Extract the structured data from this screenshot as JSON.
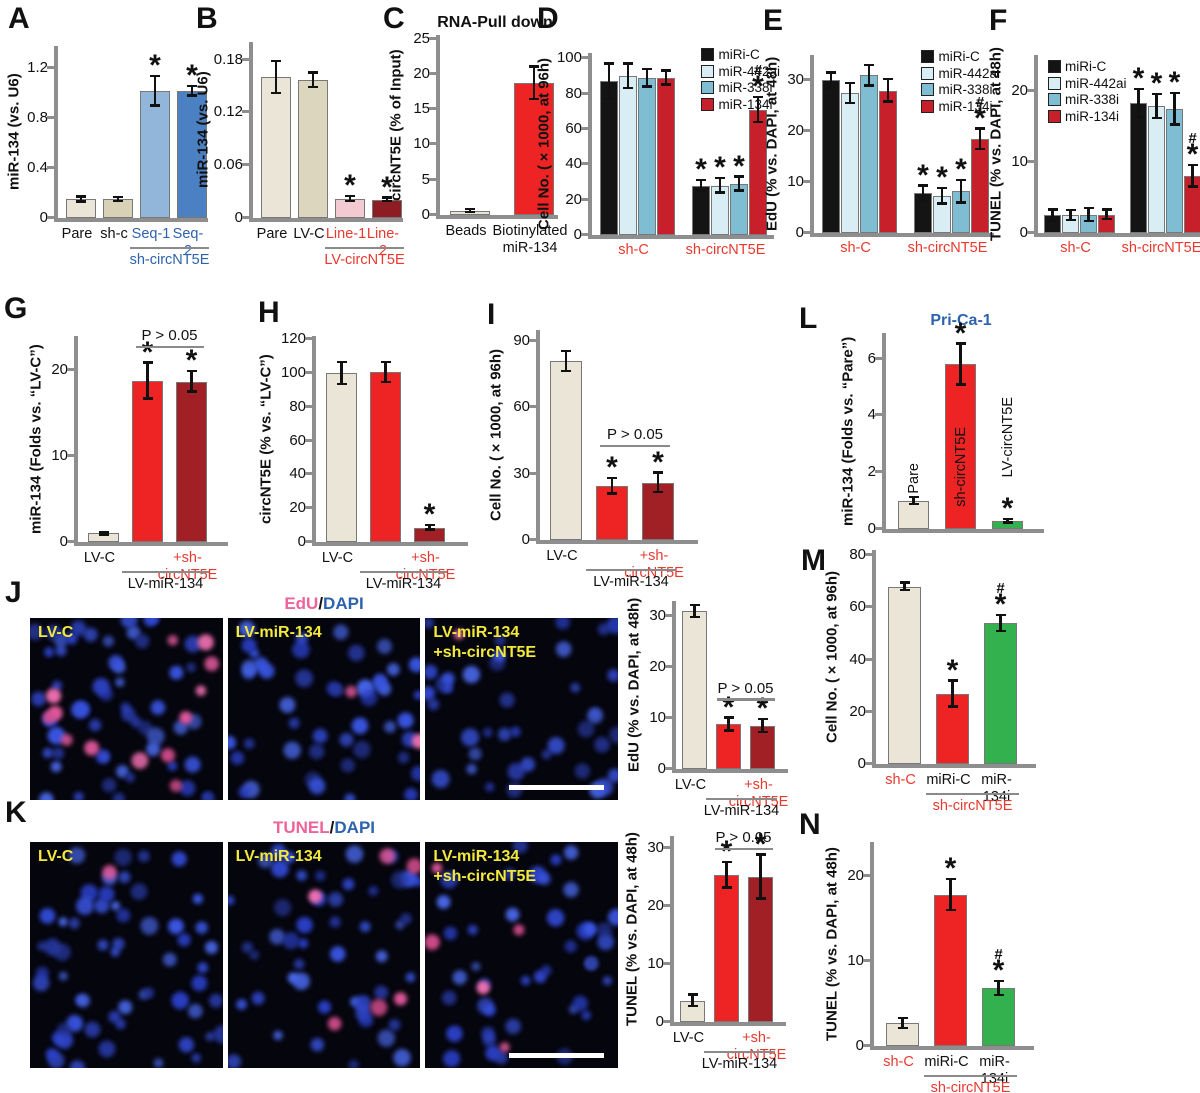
{
  "palette": {
    "beige": "#eae5d6",
    "beige2": "#ddd6bf",
    "tan": "#d8d1b5",
    "lightblue": "#92b5da",
    "blue": "#4b80c3",
    "pink": "#f3cad2",
    "maroon": "#8e1d23",
    "red": "#ee2424",
    "darkred": "#a02025",
    "black": "#141414",
    "vlightblue": "#d9edf5",
    "teal": "#7fbed2",
    "crimson": "#c8202a",
    "green": "#33b14e",
    "axis": "#8e8e8e",
    "red_text": "#e8392f",
    "blue_text": "#2d62ae",
    "yellow": "#f2e93a"
  },
  "panel_letters": {
    "A": "A",
    "B": "B",
    "C": "C",
    "D": "D",
    "E": "E",
    "F": "F",
    "G": "G",
    "H": "H",
    "I": "I",
    "J": "J",
    "K": "K",
    "L": "L",
    "M": "M",
    "N": "N"
  },
  "chart_data": {
    "A": {
      "type": "bar",
      "ylabel": "miR-134 (vs. U6)",
      "ymax": 1.38,
      "yticks": [
        0,
        0.4,
        0.8,
        1.2
      ],
      "bars": [
        {
          "label": "Pare",
          "value": 0.15,
          "err": 0.02,
          "color": "beige"
        },
        {
          "label": "sh-c",
          "value": 0.15,
          "err": 0.015,
          "color": "tan"
        },
        {
          "label": "Seq-1",
          "label_color": "blue_text",
          "value": 1.02,
          "err": 0.12,
          "color": "lightblue",
          "sig": "*"
        },
        {
          "label": "Seq-2",
          "label_color": "blue_text",
          "value": 1.02,
          "err": 0.04,
          "color": "blue",
          "sig": "*"
        }
      ],
      "groups": [
        {
          "label": "sh-circNT5E",
          "color": "blue_text",
          "from": 2,
          "to": 3,
          "line": true
        }
      ]
    },
    "B": {
      "type": "bar",
      "ylabel": "miR-134 (vs. U6)",
      "ymax": 0.2,
      "yticks": [
        0,
        0.06,
        0.12,
        0.18
      ],
      "bars": [
        {
          "label": "Pare",
          "value": 0.16,
          "err": 0.018,
          "color": "beige"
        },
        {
          "label": "LV-C",
          "value": 0.157,
          "err": 0.008,
          "color": "beige2"
        },
        {
          "label": "Line-1",
          "label_color": "red_text",
          "value": 0.022,
          "err": 0.003,
          "color": "pink",
          "sig": "*"
        },
        {
          "label": "Line-2",
          "label_color": "red_text",
          "value": 0.021,
          "err": 0.002,
          "color": "maroon",
          "sig": "*"
        }
      ],
      "groups": [
        {
          "label": "LV-circNT5E",
          "color": "red_text",
          "from": 2,
          "to": 3,
          "line": true
        }
      ]
    },
    "C": {
      "type": "bar",
      "title": "RNA-Pull down",
      "title_color": "#111111",
      "ylabel": "circNT5E (% of Input)",
      "ymax": 25.5,
      "yticks": [
        0,
        5,
        10,
        15,
        20,
        25
      ],
      "bars": [
        {
          "label": "Beads",
          "value": 0.6,
          "err": 0.2,
          "color": "beige"
        },
        {
          "label": "Biotinylated\nmiR-134",
          "value": 18.7,
          "err": 2.3,
          "color": "red"
        }
      ]
    },
    "D": {
      "type": "bar",
      "ylabel": "Cell No. (×1000, at 96h)",
      "ymax": 103,
      "yticks": [
        0,
        20,
        40,
        60,
        80,
        100
      ],
      "legend": {
        "pos": "tr",
        "items": [
          {
            "label": "miRi-C",
            "color": "black"
          },
          {
            "label": "miR-442ai",
            "color": "vlightblue"
          },
          {
            "label": "miR-338i",
            "color": "teal"
          },
          {
            "label": "miR-134i",
            "color": "crimson"
          }
        ]
      },
      "gap_after": 3,
      "bars": [
        {
          "value": 87,
          "err": 10,
          "color": "black"
        },
        {
          "value": 90,
          "err": 7,
          "color": "vlightblue"
        },
        {
          "value": 89,
          "err": 5,
          "color": "teal"
        },
        {
          "value": 89,
          "err": 4,
          "color": "crimson"
        },
        {
          "value": 28,
          "err": 3,
          "color": "black",
          "sig": "*"
        },
        {
          "value": 28,
          "err": 4,
          "color": "vlightblue",
          "sig": "*"
        },
        {
          "value": 29,
          "err": 4,
          "color": "teal",
          "sig": "*"
        },
        {
          "value": 71,
          "err": 7,
          "color": "crimson",
          "sig": "#*"
        }
      ],
      "groups": [
        {
          "label": "sh-C",
          "color": "red_text",
          "from": 0,
          "to": 3,
          "line": false
        },
        {
          "label": "sh-circNT5E",
          "color": "red_text",
          "from": 4,
          "to": 7,
          "line": false
        }
      ]
    },
    "E": {
      "type": "bar",
      "ylabel": "EdU (% vs. DAPI, at 48h)",
      "ymax": 35,
      "yticks": [
        0,
        10,
        20,
        30
      ],
      "legend": {
        "pos": "tr",
        "items": [
          {
            "label": "miRi-C",
            "color": "black"
          },
          {
            "label": "miR-442ai",
            "color": "vlightblue"
          },
          {
            "label": "miR-338i",
            "color": "teal"
          },
          {
            "label": "miR-134i",
            "color": "crimson"
          }
        ]
      },
      "gap_after": 3,
      "bars": [
        {
          "value": 30,
          "err": 1.5,
          "color": "black"
        },
        {
          "value": 27.5,
          "err": 2,
          "color": "vlightblue"
        },
        {
          "value": 31,
          "err": 2,
          "color": "teal"
        },
        {
          "value": 28,
          "err": 2.2,
          "color": "crimson"
        },
        {
          "value": 7.8,
          "err": 1.5,
          "color": "black",
          "sig": "*"
        },
        {
          "value": 7.3,
          "err": 1.5,
          "color": "vlightblue",
          "sig": "*"
        },
        {
          "value": 8.2,
          "err": 2.2,
          "color": "teal",
          "sig": "*"
        },
        {
          "value": 18.5,
          "err": 2,
          "color": "crimson",
          "sig": "#*"
        }
      ],
      "groups": [
        {
          "label": "sh-C",
          "color": "red_text",
          "from": 0,
          "to": 3,
          "line": false
        },
        {
          "label": "sh-circNT5E",
          "color": "red_text",
          "from": 4,
          "to": 7,
          "line": false
        }
      ]
    },
    "F": {
      "type": "bar",
      "ylabel": "TUNEL (% vs. DAPI, at 48h)",
      "ymax": 25,
      "yticks": [
        0,
        10,
        20
      ],
      "legend": {
        "pos": "tl",
        "items": [
          {
            "label": "miRi-C",
            "color": "black"
          },
          {
            "label": "miR-442ai",
            "color": "vlightblue"
          },
          {
            "label": "miR-338i",
            "color": "teal"
          },
          {
            "label": "miR-134i",
            "color": "crimson"
          }
        ]
      },
      "gap_after": 3,
      "bars": [
        {
          "value": 2.5,
          "err": 0.8,
          "color": "black"
        },
        {
          "value": 2.5,
          "err": 0.7,
          "color": "vlightblue"
        },
        {
          "value": 2.6,
          "err": 0.9,
          "color": "teal"
        },
        {
          "value": 2.6,
          "err": 0.7,
          "color": "crimson"
        },
        {
          "value": 18.2,
          "err": 2,
          "color": "black",
          "sig": "*"
        },
        {
          "value": 17.8,
          "err": 1.7,
          "color": "vlightblue",
          "sig": "*"
        },
        {
          "value": 17.4,
          "err": 2.2,
          "color": "teal",
          "sig": "*"
        },
        {
          "value": 8,
          "err": 1.5,
          "color": "crimson",
          "sig": "#*"
        }
      ],
      "groups": [
        {
          "label": "sh-C",
          "color": "red_text",
          "from": 0,
          "to": 3,
          "line": false
        },
        {
          "label": "sh-circNT5E",
          "color": "red_text",
          "from": 4,
          "to": 7,
          "line": false
        }
      ]
    },
    "G": {
      "type": "bar",
      "ylabel": "miR-134 (Folds vs. “LV-C”)",
      "ymax": 24,
      "yticks": [
        0,
        10,
        20
      ],
      "bars": [
        {
          "label": "LV-C",
          "value": 1,
          "err": 0.15,
          "color": "beige"
        },
        {
          "value": 18.8,
          "err": 2.1,
          "color": "red",
          "sig": "*"
        },
        {
          "label": "+sh-circNT5E",
          "label_color": "red_text",
          "value": 18.7,
          "err": 1.2,
          "color": "darkred",
          "sig": "*"
        }
      ],
      "groups": [
        {
          "label": "LV-miR-134",
          "color": "#111111",
          "from": 1,
          "to": 2,
          "line": true
        }
      ],
      "pbracket": {
        "from": 1,
        "to": 2,
        "label": "P > 0.05",
        "level": 22.6
      }
    },
    "H": {
      "type": "bar",
      "ylabel": "circNT5E (% vs. “LV-C”)",
      "ymax": 122,
      "yticks": [
        0,
        20,
        40,
        60,
        80,
        100,
        120
      ],
      "bars": [
        {
          "label": "LV-C",
          "value": 100,
          "err": 6.5,
          "color": "beige"
        },
        {
          "value": 100.5,
          "err": 6,
          "color": "red"
        },
        {
          "label": "+sh-circNT5E",
          "label_color": "red_text",
          "value": 8.5,
          "err": 1.3,
          "color": "darkred",
          "sig": "*"
        }
      ],
      "groups": [
        {
          "label": "LV-miR-134",
          "color": "#111111",
          "from": 1,
          "to": 2,
          "line": true
        }
      ]
    },
    "I": {
      "type": "bar",
      "ylabel": "Cell No. (×1000, at 96h)",
      "ymax": 95,
      "yticks": [
        0,
        30,
        60,
        90
      ],
      "bars": [
        {
          "label": "LV-C",
          "value": 81,
          "err": 4.5,
          "color": "beige"
        },
        {
          "value": 24.5,
          "err": 3.5,
          "color": "red",
          "sig": "*"
        },
        {
          "label": "+sh-circNT5E",
          "label_color": "red_text",
          "value": 26,
          "err": 4.5,
          "color": "darkred",
          "sig": "*"
        }
      ],
      "groups": [
        {
          "label": "LV-miR-134",
          "color": "#111111",
          "from": 1,
          "to": 2,
          "line": true
        }
      ],
      "pbracket": {
        "from": 1,
        "to": 2,
        "label": "P > 0.05",
        "level": 42
      }
    },
    "Jc": {
      "type": "bar",
      "ylabel": "EdU (% vs. DAPI, at 48h)",
      "ymax": 33,
      "yticks": [
        0,
        10,
        20,
        30
      ],
      "bars": [
        {
          "label": "LV-C",
          "value": 31,
          "err": 1.2,
          "color": "beige"
        },
        {
          "value": 8.8,
          "err": 1.3,
          "color": "red",
          "sig": "*"
        },
        {
          "label": "+sh-circNT5E",
          "label_color": "red_text",
          "value": 8.5,
          "err": 1.3,
          "color": "darkred",
          "sig": "*"
        }
      ],
      "groups": [
        {
          "label": "LV-miR-134",
          "color": "#111111",
          "from": 1,
          "to": 2,
          "line": true
        }
      ],
      "pbracket": {
        "from": 1,
        "to": 2,
        "label": "P > 0.05",
        "level": 13.4
      }
    },
    "Kc": {
      "type": "bar",
      "ylabel": "TUNEL (% vs. DAPI, at 48h)",
      "ymax": 32,
      "yticks": [
        0,
        10,
        20,
        30
      ],
      "bars": [
        {
          "label": "LV-C",
          "value": 3.7,
          "err": 1,
          "color": "beige"
        },
        {
          "value": 25.3,
          "err": 2.2,
          "color": "red",
          "sig": "*"
        },
        {
          "label": "+sh-circNT5E",
          "label_color": "red_text",
          "value": 25,
          "err": 3.8,
          "color": "darkred",
          "sig": "*"
        }
      ],
      "groups": [
        {
          "label": "LV-miR-134",
          "color": "#111111",
          "from": 1,
          "to": 2,
          "line": true
        }
      ],
      "pbracket": {
        "from": 1,
        "to": 2,
        "label": "P > 0.05",
        "level": 29.6
      }
    },
    "L": {
      "type": "bar",
      "title": "Pri-Ca-1",
      "title_color": "blue_text",
      "ylabel": "miR-134 (Folds vs. “Pare”)",
      "ymax": 6.9,
      "yticks": [
        0,
        2,
        4,
        6
      ],
      "bars": [
        {
          "rot_label": "Pare",
          "value": 1,
          "err": 0.12,
          "color": "beige"
        },
        {
          "rot_label": "sh-circNT5E",
          "rot_inside": true,
          "value": 5.8,
          "err": 0.72,
          "color": "red",
          "sig": "*"
        },
        {
          "rot_label": "LV-circNT5E",
          "rot_raise": 44,
          "value": 0.28,
          "err": 0.06,
          "color": "green",
          "sig": "*"
        }
      ]
    },
    "M": {
      "type": "bar",
      "ylabel": "Cell No. (×1000, at 96h)",
      "ymax": 82,
      "yticks": [
        0,
        20,
        40,
        60,
        80
      ],
      "bars": [
        {
          "label": "sh-C",
          "label_color": "red_text",
          "value": 68,
          "err": 1.5,
          "color": "beige"
        },
        {
          "label": "miRi-C",
          "value": 27,
          "err": 5,
          "color": "red",
          "sig": "*"
        },
        {
          "label": "miR-134i",
          "value": 54,
          "err": 3,
          "color": "green",
          "sig": "#*"
        }
      ],
      "groups": [
        {
          "label": "sh-circNT5E",
          "color": "red_text",
          "from": 1,
          "to": 2,
          "line": true
        }
      ]
    },
    "N": {
      "type": "bar",
      "ylabel": "TUNEL (% vs. DAPI, at 48h)",
      "ymax": 24,
      "yticks": [
        0,
        10,
        20
      ],
      "bars": [
        {
          "label": "sh-C",
          "label_color": "red_text",
          "value": 2.7,
          "err": 0.6,
          "color": "beige"
        },
        {
          "label": "miRi-C",
          "value": 17.8,
          "err": 1.8,
          "color": "red",
          "sig": "*"
        },
        {
          "label": "miR-134i",
          "value": 6.8,
          "err": 0.8,
          "color": "green",
          "sig": "#*"
        }
      ],
      "groups": [
        {
          "label": "sh-circNT5E",
          "color": "red_text",
          "from": 1,
          "to": 2,
          "line": true
        }
      ]
    }
  },
  "micro": {
    "J": {
      "title_parts": [
        {
          "text": "EdU",
          "color": "#f0639a"
        },
        {
          "text": "/",
          "color": "#111111"
        },
        {
          "text": "DAPI",
          "color": "#2d62ae"
        }
      ],
      "images": [
        {
          "label": "LV-C",
          "blue": 54,
          "pink": 13
        },
        {
          "label": "LV-miR-134",
          "blue": 46,
          "pink": 2
        },
        {
          "label": "LV-miR-134\n+sh-circNT5E",
          "blue": 40,
          "pink": 1,
          "scalebar": true
        }
      ]
    },
    "K": {
      "title_parts": [
        {
          "text": "TUNEL",
          "color": "#f0639a"
        },
        {
          "text": "/",
          "color": "#111111"
        },
        {
          "text": "DAPI",
          "color": "#2d62ae"
        }
      ],
      "images": [
        {
          "label": "LV-C",
          "blue": 58,
          "pink": 1
        },
        {
          "label": "LV-miR-134",
          "blue": 48,
          "pink": 6
        },
        {
          "label": "LV-miR-134\n+sh-circNT5E",
          "blue": 42,
          "pink": 5,
          "scalebar": true
        }
      ]
    }
  }
}
